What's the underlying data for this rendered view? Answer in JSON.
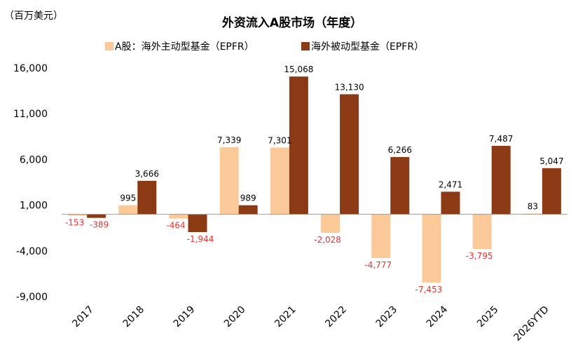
{
  "chart_data": {
    "type": "bar",
    "title": "外资流入A股市场（年度）",
    "unit_label": "（百万美元）",
    "categories": [
      "2017",
      "2018",
      "2019",
      "2020",
      "2021",
      "2022",
      "2023",
      "2024",
      "2025",
      "2026YTD"
    ],
    "series": [
      {
        "name": "A股：海外主动型基金（EPFR）",
        "color": "#fcc998",
        "values": [
          -153,
          995,
          -464,
          7339,
          7301,
          -2028,
          -4777,
          -7453,
          -3795,
          83
        ]
      },
      {
        "name": "海外被动型基金（EPFR）",
        "color": "#8b3a14",
        "values": [
          -389,
          3666,
          -1944,
          989,
          15068,
          13130,
          6266,
          2471,
          7487,
          5047
        ]
      }
    ],
    "ylim": [
      -9000,
      16000
    ],
    "yticks": [
      -9000,
      -4000,
      1000,
      6000,
      11000,
      16000
    ],
    "ytick_labels": [
      "-9,000",
      "-4,000",
      "1,000",
      "6,000",
      "11,000",
      "16,000"
    ],
    "negative_label_color": "#e8322d",
    "grid": false,
    "legend_position": "top"
  }
}
